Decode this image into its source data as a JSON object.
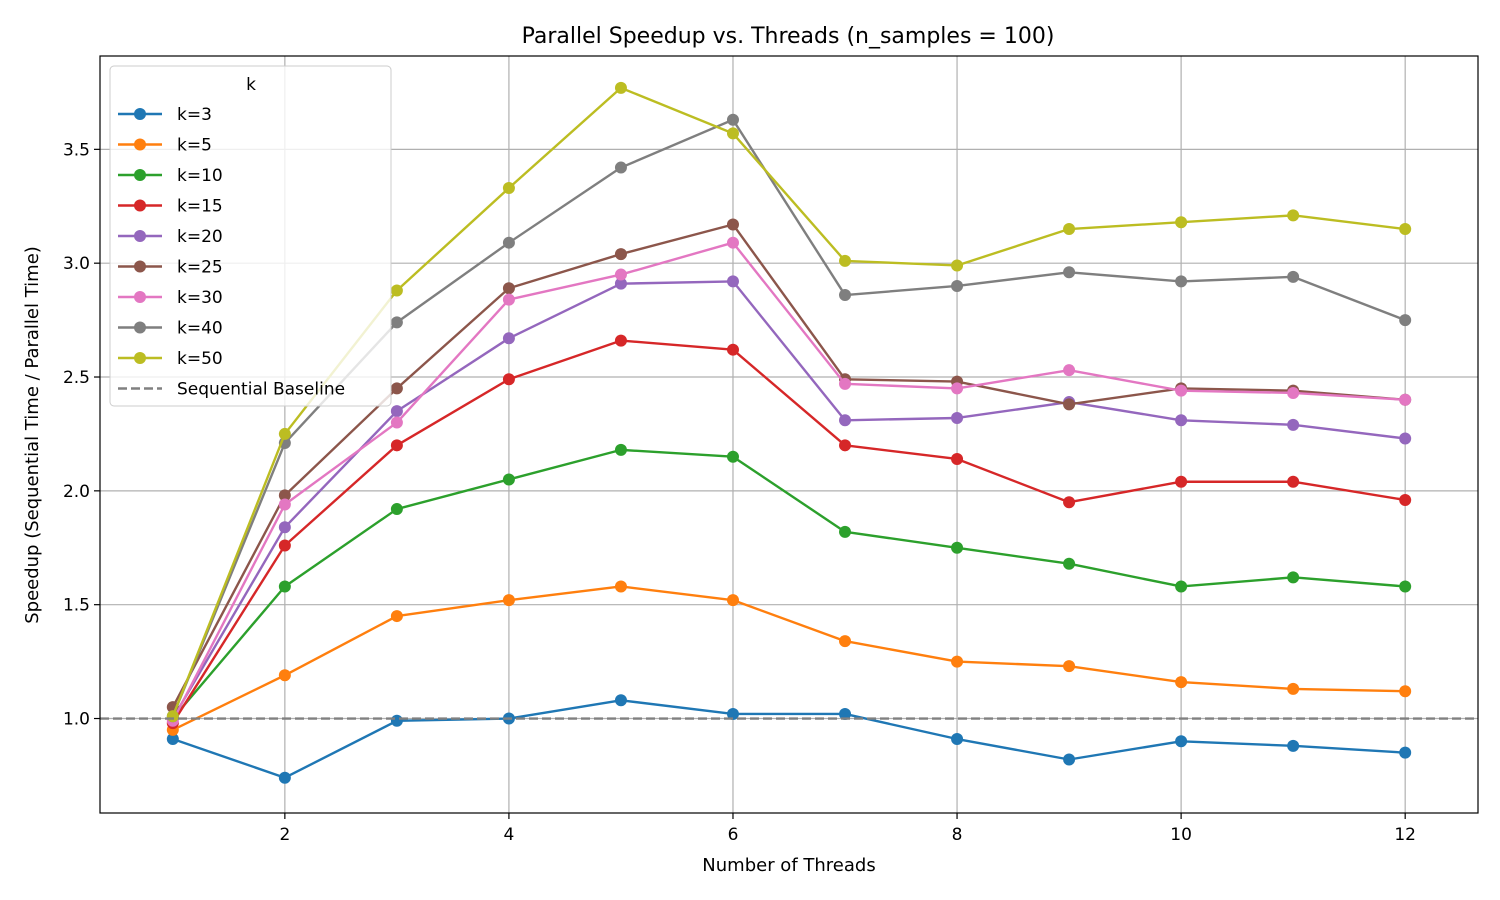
{
  "chart_data": {
    "type": "line",
    "title": "Parallel Speedup vs. Threads (n_samples = 100)",
    "xlabel": "Number of Threads",
    "ylabel": "Speedup (Sequential Time / Parallel Time)",
    "xlim": [
      0.35,
      12.65
    ],
    "ylim": [
      0.585,
      3.91
    ],
    "x_ticks": [
      2,
      4,
      6,
      8,
      10,
      12
    ],
    "y_ticks": [
      1.0,
      1.5,
      2.0,
      2.5,
      3.0,
      3.5
    ],
    "y_tick_labels": [
      "1.0",
      "1.5",
      "2.0",
      "2.5",
      "3.0",
      "3.5"
    ],
    "grid": true,
    "legend_title": "k",
    "legend_position": "top-left",
    "x": [
      1,
      2,
      3,
      4,
      5,
      6,
      7,
      8,
      9,
      10,
      11,
      12
    ],
    "series": [
      {
        "name": "k=3",
        "color": "#1f77b4",
        "values": [
          0.91,
          0.74,
          0.99,
          1.0,
          1.08,
          1.02,
          1.02,
          0.91,
          0.82,
          0.9,
          0.88,
          0.85
        ]
      },
      {
        "name": "k=5",
        "color": "#ff7f0e",
        "values": [
          0.95,
          1.19,
          1.45,
          1.52,
          1.58,
          1.52,
          1.34,
          1.25,
          1.23,
          1.16,
          1.13,
          1.12
        ]
      },
      {
        "name": "k=10",
        "color": "#2ca02c",
        "values": [
          1.0,
          1.58,
          1.92,
          2.05,
          2.18,
          2.15,
          1.82,
          1.75,
          1.68,
          1.58,
          1.62,
          1.58
        ]
      },
      {
        "name": "k=15",
        "color": "#d62728",
        "values": [
          0.98,
          1.76,
          2.2,
          2.49,
          2.66,
          2.62,
          2.2,
          2.14,
          1.95,
          2.04,
          2.04,
          1.96
        ]
      },
      {
        "name": "k=20",
        "color": "#9467bd",
        "values": [
          1.0,
          1.84,
          2.35,
          2.67,
          2.91,
          2.92,
          2.31,
          2.32,
          2.39,
          2.31,
          2.29,
          2.23
        ]
      },
      {
        "name": "k=25",
        "color": "#8c564b",
        "values": [
          1.05,
          1.98,
          2.45,
          2.89,
          3.04,
          3.17,
          2.49,
          2.48,
          2.38,
          2.45,
          2.44,
          2.4
        ]
      },
      {
        "name": "k=30",
        "color": "#e377c2",
        "values": [
          0.99,
          1.94,
          2.3,
          2.84,
          2.95,
          3.09,
          2.47,
          2.45,
          2.53,
          2.44,
          2.43,
          2.4
        ]
      },
      {
        "name": "k=40",
        "color": "#7f7f7f",
        "values": [
          1.01,
          2.21,
          2.74,
          3.09,
          3.42,
          3.63,
          2.86,
          2.9,
          2.96,
          2.92,
          2.94,
          2.75
        ]
      },
      {
        "name": "k=50",
        "color": "#bcbd22",
        "values": [
          1.01,
          2.25,
          2.88,
          3.33,
          3.77,
          3.57,
          3.01,
          2.99,
          3.15,
          3.18,
          3.21,
          3.15
        ]
      }
    ],
    "baseline": {
      "name": "Sequential Baseline",
      "value": 1.0,
      "color": "#808080",
      "style": "dashed"
    }
  }
}
